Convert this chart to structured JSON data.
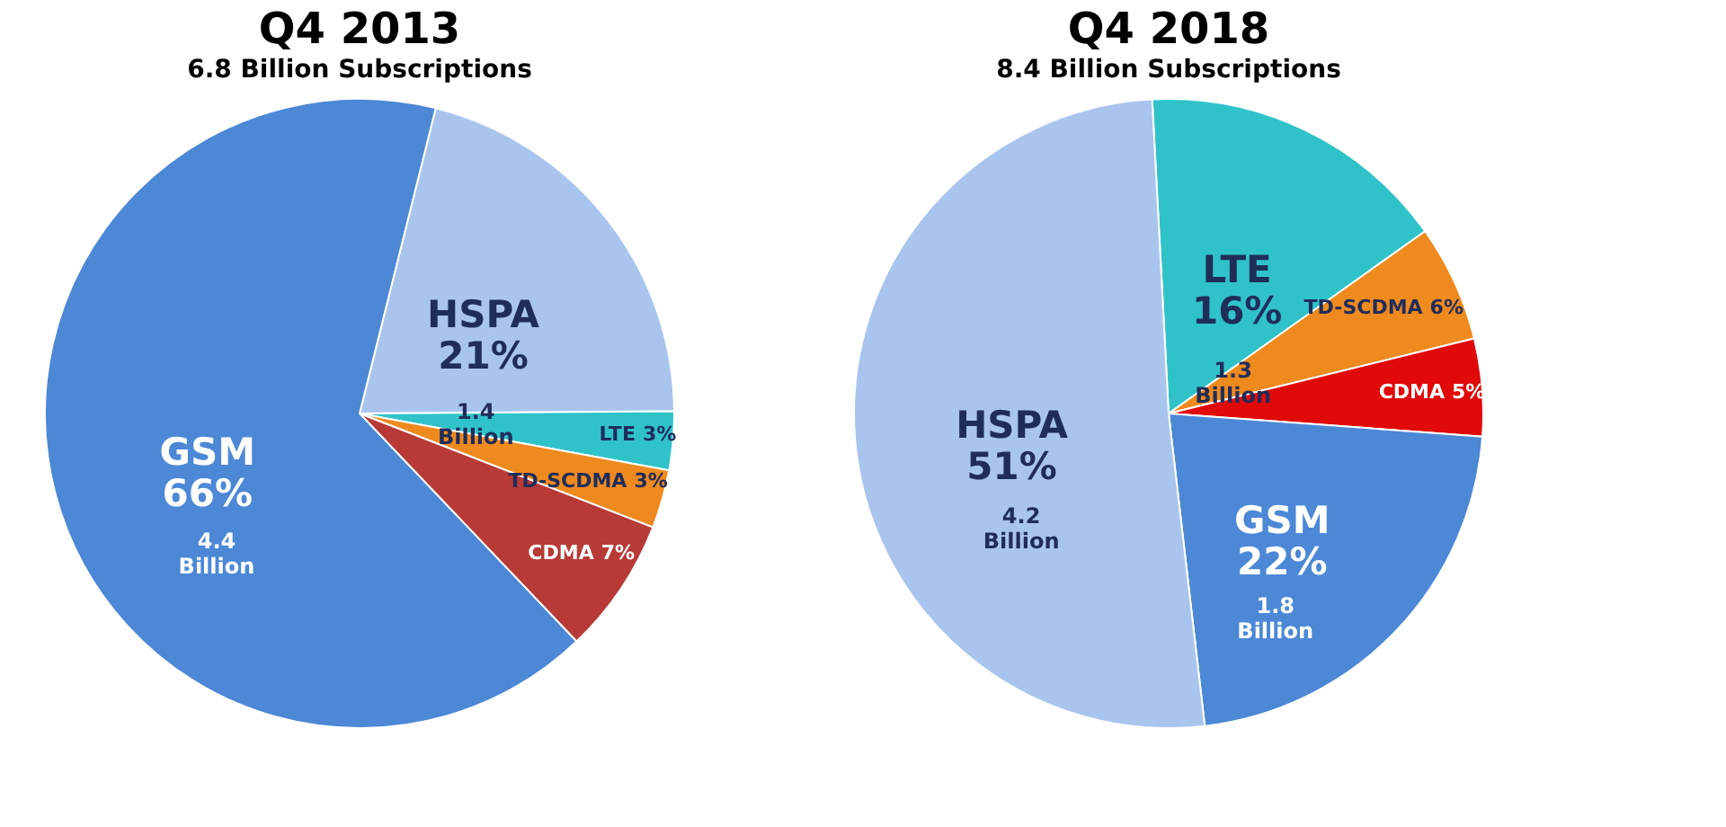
{
  "chart_data": [
    {
      "type": "pie",
      "title": "Q4 2013",
      "subtitle": "6.8 Billion Subscriptions",
      "categories": [
        "HSPA",
        "LTE",
        "TD-SCDMA",
        "CDMA",
        "GSM"
      ],
      "values": [
        21,
        3,
        3,
        7,
        66
      ],
      "value_labels": [
        "21%",
        "3%",
        "3%",
        "7%",
        "66%"
      ],
      "colors": [
        "#a9c5ee",
        "#2fc3c9",
        "#ef8a1e",
        "#b83a36",
        "#4c88d6"
      ],
      "annotations": [
        {
          "text": "1.4 Billion",
          "x": "HSPA"
        },
        {
          "text": "4.4 Billion",
          "x": "GSM"
        }
      ]
    },
    {
      "type": "pie",
      "title": "Q4 2018",
      "subtitle": "8.4 Billion Subscriptions",
      "categories": [
        "LTE",
        "TD-SCDMA",
        "CDMA",
        "GSM",
        "HSPA"
      ],
      "values": [
        16,
        6,
        5,
        22,
        51
      ],
      "value_labels": [
        "16%",
        "6%",
        "5%",
        "22%",
        "51%"
      ],
      "colors": [
        "#2fc3c9",
        "#ef8a1e",
        "#e00a0a",
        "#4c88d6",
        "#a9c5ee"
      ],
      "annotations": [
        {
          "text": "1.3 Billion",
          "x": "LTE"
        },
        {
          "text": "1.8 Billion",
          "x": "GSM"
        },
        {
          "text": "4.2 Billion",
          "x": "HSPA"
        }
      ]
    }
  ]
}
